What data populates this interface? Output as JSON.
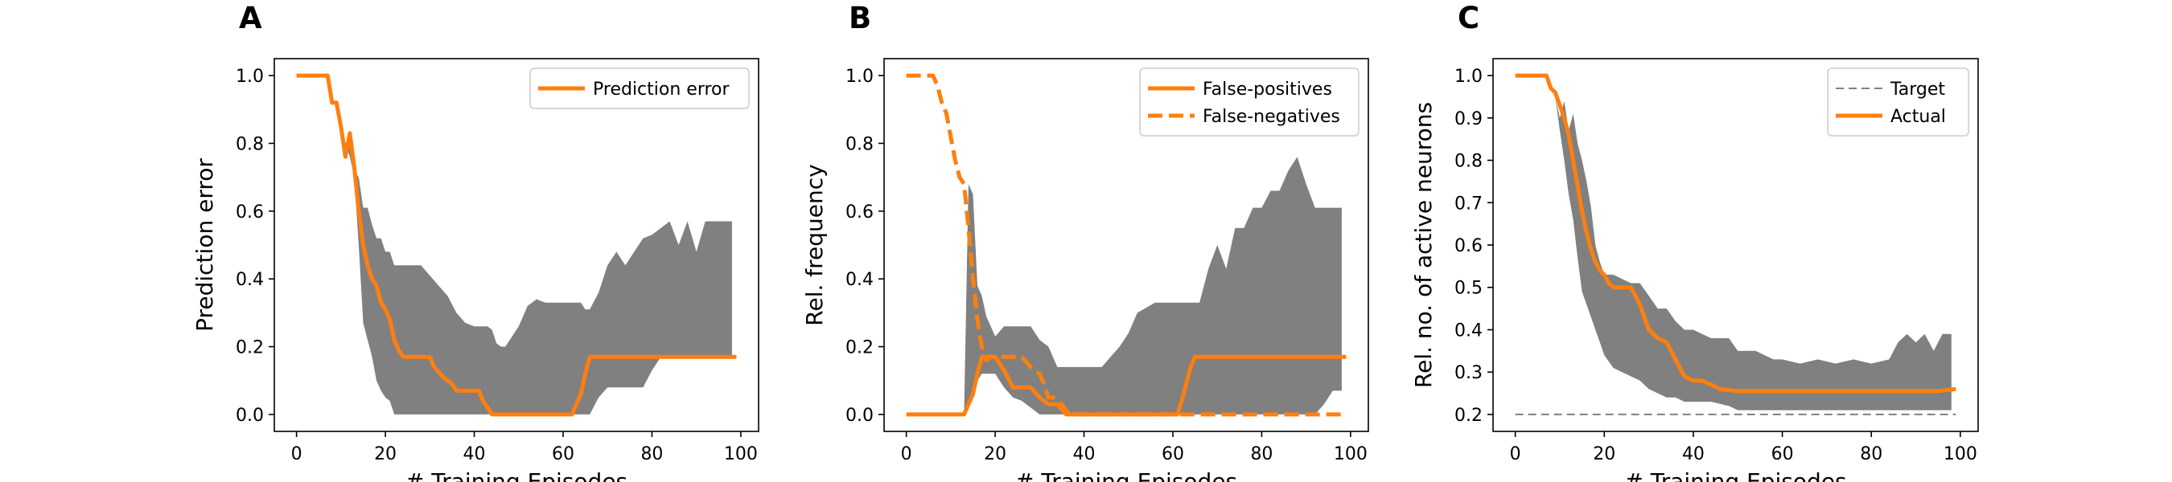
{
  "chart_data": [
    {
      "panel_label": "A",
      "type": "line",
      "xlabel": "# Training Episodes",
      "ylabel": "Prediction error",
      "xlim": [
        -5,
        104
      ],
      "ylim": [
        -0.05,
        1.05
      ],
      "xticks": [
        0,
        20,
        40,
        60,
        80,
        100
      ],
      "yticks": [
        0.0,
        0.2,
        0.4,
        0.6,
        0.8,
        1.0
      ],
      "ytick_labels": [
        "0.0",
        "0.2",
        "0.4",
        "0.6",
        "0.8",
        "1.0"
      ],
      "grid": false,
      "legend_position": "top-right",
      "band": {
        "x": [
          0,
          7,
          8,
          9,
          10,
          11,
          12,
          13,
          14,
          15,
          16,
          17,
          18,
          19,
          20,
          21,
          22,
          23,
          24,
          26,
          28,
          30,
          32,
          34,
          36,
          38,
          40,
          42,
          43,
          44,
          45,
          46,
          47,
          48,
          50,
          52,
          54,
          56,
          58,
          60,
          62,
          64,
          65,
          66,
          68,
          70,
          72,
          74,
          76,
          78,
          80,
          82,
          84,
          86,
          88,
          90,
          92,
          94,
          96,
          98
        ],
        "upper": [
          1.0,
          1.0,
          0.92,
          0.92,
          0.87,
          0.8,
          0.83,
          0.72,
          0.7,
          0.61,
          0.61,
          0.56,
          0.52,
          0.52,
          0.48,
          0.48,
          0.44,
          0.44,
          0.44,
          0.44,
          0.44,
          0.41,
          0.38,
          0.35,
          0.3,
          0.27,
          0.26,
          0.26,
          0.26,
          0.25,
          0.21,
          0.2,
          0.2,
          0.22,
          0.26,
          0.32,
          0.34,
          0.33,
          0.33,
          0.33,
          0.33,
          0.33,
          0.31,
          0.31,
          0.36,
          0.44,
          0.48,
          0.44,
          0.48,
          0.52,
          0.53,
          0.55,
          0.57,
          0.5,
          0.57,
          0.48,
          0.57,
          0.57,
          0.57,
          0.57
        ],
        "lower": [
          1.0,
          1.0,
          0.92,
          0.92,
          0.87,
          0.8,
          0.76,
          0.7,
          0.5,
          0.27,
          0.22,
          0.17,
          0.1,
          0.07,
          0.05,
          0.04,
          0.0,
          0.0,
          0.0,
          0.0,
          0.0,
          0.0,
          0.0,
          0.0,
          0.0,
          0.0,
          0.0,
          0.0,
          0.0,
          0.0,
          0.0,
          0.0,
          0.0,
          0.0,
          0.0,
          0.0,
          0.0,
          0.0,
          0.0,
          0.0,
          0.0,
          0.0,
          0.0,
          0.0,
          0.05,
          0.08,
          0.08,
          0.08,
          0.08,
          0.08,
          0.13,
          0.17,
          0.17,
          0.17,
          0.17,
          0.17,
          0.17,
          0.17,
          0.17,
          0.17
        ]
      },
      "series": [
        {
          "name": "Prediction error",
          "style": "solid",
          "color": "#ff7f0e",
          "x": [
            0,
            7,
            8,
            9,
            10,
            11,
            12,
            13,
            14,
            15,
            16,
            17,
            18,
            19,
            20,
            21,
            22,
            23,
            24,
            25,
            26,
            28,
            30,
            31,
            33,
            35,
            36,
            38,
            41,
            42,
            43,
            44,
            45,
            50,
            55,
            60,
            62,
            64,
            65,
            66,
            70,
            80,
            90,
            99
          ],
          "y": [
            1.0,
            1.0,
            0.92,
            0.92,
            0.85,
            0.76,
            0.83,
            0.73,
            0.6,
            0.5,
            0.44,
            0.4,
            0.38,
            0.33,
            0.31,
            0.28,
            0.22,
            0.19,
            0.17,
            0.17,
            0.17,
            0.17,
            0.17,
            0.14,
            0.11,
            0.09,
            0.07,
            0.07,
            0.07,
            0.04,
            0.02,
            0.0,
            0.0,
            0.0,
            0.0,
            0.0,
            0.0,
            0.06,
            0.12,
            0.17,
            0.17,
            0.17,
            0.17,
            0.17
          ]
        }
      ]
    },
    {
      "panel_label": "B",
      "type": "line",
      "xlabel": "# Training Episodes",
      "ylabel": "Rel. frequency",
      "xlim": [
        -5,
        104
      ],
      "ylim": [
        -0.05,
        1.05
      ],
      "xticks": [
        0,
        20,
        40,
        60,
        80,
        100
      ],
      "yticks": [
        0.0,
        0.2,
        0.4,
        0.6,
        0.8,
        1.0
      ],
      "ytick_labels": [
        "0.0",
        "0.2",
        "0.4",
        "0.6",
        "0.8",
        "1.0"
      ],
      "grid": false,
      "legend_position": "top-right",
      "band": {
        "x": [
          0,
          13,
          14,
          15,
          16,
          17,
          18,
          19,
          20,
          22,
          24,
          26,
          28,
          30,
          32,
          34,
          36,
          38,
          40,
          44,
          48,
          50,
          52,
          56,
          60,
          62,
          63,
          64,
          66,
          68,
          70,
          72,
          74,
          76,
          78,
          80,
          82,
          84,
          86,
          88,
          90,
          92,
          94,
          96,
          98
        ],
        "upper": [
          0.0,
          0.0,
          0.68,
          0.65,
          0.38,
          0.35,
          0.29,
          0.26,
          0.23,
          0.26,
          0.26,
          0.26,
          0.26,
          0.22,
          0.2,
          0.14,
          0.14,
          0.14,
          0.14,
          0.14,
          0.2,
          0.24,
          0.3,
          0.33,
          0.33,
          0.33,
          0.33,
          0.33,
          0.33,
          0.43,
          0.5,
          0.43,
          0.55,
          0.55,
          0.61,
          0.61,
          0.66,
          0.66,
          0.72,
          0.76,
          0.68,
          0.61,
          0.61,
          0.61,
          0.61
        ],
        "lower": [
          0.0,
          0.0,
          0.02,
          0.05,
          0.1,
          0.12,
          0.12,
          0.12,
          0.12,
          0.08,
          0.05,
          0.04,
          0.02,
          0.0,
          0.0,
          0.0,
          0.0,
          0.0,
          0.0,
          0.0,
          0.0,
          0.0,
          0.0,
          0.0,
          0.0,
          0.0,
          0.0,
          0.0,
          0.0,
          0.0,
          0.0,
          0.0,
          0.0,
          0.0,
          0.0,
          0.0,
          0.0,
          0.0,
          0.0,
          0.0,
          0.0,
          0.0,
          0.03,
          0.07,
          0.07
        ]
      },
      "series": [
        {
          "name": "False-positives",
          "style": "solid",
          "color": "#ff7f0e",
          "x": [
            0,
            13,
            14,
            15,
            16,
            17,
            18,
            20,
            22,
            24,
            26,
            28,
            30,
            32,
            34,
            36,
            38,
            40,
            45,
            50,
            55,
            60,
            61,
            62,
            63,
            64,
            65,
            70,
            80,
            90,
            99
          ],
          "y": [
            0.0,
            0.0,
            0.03,
            0.06,
            0.12,
            0.17,
            0.17,
            0.17,
            0.13,
            0.08,
            0.08,
            0.08,
            0.05,
            0.03,
            0.03,
            0.0,
            0.0,
            0.0,
            0.0,
            0.0,
            0.0,
            0.0,
            0.0,
            0.04,
            0.09,
            0.14,
            0.17,
            0.17,
            0.17,
            0.17,
            0.17
          ]
        },
        {
          "name": "False-negatives",
          "style": "dashed",
          "color": "#ff7f0e",
          "x": [
            0,
            6,
            7,
            8,
            9,
            10,
            11,
            12,
            13,
            14,
            15,
            16,
            17,
            18,
            19,
            20,
            22,
            24,
            26,
            28,
            30,
            31,
            32,
            33,
            34,
            35,
            36,
            37,
            40,
            50,
            60,
            70,
            80,
            90,
            99
          ],
          "y": [
            1.0,
            1.0,
            0.97,
            0.92,
            0.89,
            0.82,
            0.75,
            0.7,
            0.68,
            0.55,
            0.4,
            0.28,
            0.2,
            0.16,
            0.17,
            0.17,
            0.17,
            0.17,
            0.17,
            0.14,
            0.12,
            0.09,
            0.05,
            0.05,
            0.04,
            0.03,
            0.01,
            0.0,
            0.0,
            0.0,
            0.0,
            0.0,
            0.0,
            0.0,
            0.0
          ]
        }
      ]
    },
    {
      "panel_label": "C",
      "type": "line",
      "xlabel": "# Training Episodes",
      "ylabel": "Rel. no. of active neurons",
      "xlim": [
        -5,
        104
      ],
      "ylim": [
        0.16,
        1.04
      ],
      "xticks": [
        0,
        20,
        40,
        60,
        80,
        100
      ],
      "yticks": [
        0.2,
        0.3,
        0.4,
        0.5,
        0.6,
        0.7,
        0.8,
        0.9,
        1.0
      ],
      "ytick_labels": [
        "0.2",
        "0.3",
        "0.4",
        "0.5",
        "0.6",
        "0.7",
        "0.8",
        "0.9",
        "1.0"
      ],
      "grid": false,
      "legend_position": "top-right",
      "band": {
        "x": [
          0,
          7,
          8,
          9,
          10,
          11,
          12,
          13,
          14,
          15,
          16,
          17,
          18,
          19,
          20,
          22,
          24,
          26,
          28,
          30,
          32,
          34,
          36,
          38,
          40,
          44,
          48,
          50,
          54,
          58,
          60,
          64,
          68,
          72,
          76,
          80,
          84,
          86,
          88,
          90,
          92,
          94,
          96,
          98
        ],
        "upper": [
          1.0,
          1.0,
          0.97,
          0.95,
          0.9,
          0.94,
          0.87,
          0.91,
          0.84,
          0.8,
          0.75,
          0.69,
          0.6,
          0.56,
          0.53,
          0.53,
          0.52,
          0.51,
          0.51,
          0.48,
          0.45,
          0.45,
          0.42,
          0.4,
          0.4,
          0.38,
          0.38,
          0.35,
          0.35,
          0.33,
          0.33,
          0.32,
          0.33,
          0.32,
          0.33,
          0.32,
          0.33,
          0.37,
          0.39,
          0.37,
          0.39,
          0.35,
          0.39,
          0.39
        ],
        "lower": [
          1.0,
          1.0,
          0.97,
          0.95,
          0.87,
          0.8,
          0.72,
          0.66,
          0.57,
          0.49,
          0.46,
          0.43,
          0.4,
          0.37,
          0.34,
          0.31,
          0.3,
          0.29,
          0.28,
          0.26,
          0.25,
          0.24,
          0.24,
          0.23,
          0.23,
          0.23,
          0.22,
          0.21,
          0.21,
          0.21,
          0.21,
          0.21,
          0.21,
          0.21,
          0.21,
          0.21,
          0.21,
          0.21,
          0.21,
          0.21,
          0.21,
          0.21,
          0.21,
          0.21
        ]
      },
      "series": [
        {
          "name": "Target",
          "style": "dashed",
          "color": "#808080",
          "x": [
            0,
            99
          ],
          "y": [
            0.2,
            0.2
          ]
        },
        {
          "name": "Actual",
          "style": "solid",
          "color": "#ff7f0e",
          "x": [
            0,
            7,
            8,
            9,
            10,
            11,
            12,
            13,
            14,
            15,
            16,
            17,
            18,
            19,
            20,
            21,
            22,
            24,
            26,
            28,
            30,
            32,
            34,
            36,
            38,
            40,
            42,
            44,
            46,
            50,
            55,
            60,
            70,
            80,
            90,
            95,
            99
          ],
          "y": [
            1.0,
            1.0,
            0.97,
            0.96,
            0.93,
            0.9,
            0.86,
            0.8,
            0.74,
            0.68,
            0.63,
            0.59,
            0.56,
            0.54,
            0.53,
            0.51,
            0.5,
            0.5,
            0.5,
            0.46,
            0.4,
            0.38,
            0.37,
            0.33,
            0.29,
            0.28,
            0.28,
            0.27,
            0.26,
            0.255,
            0.255,
            0.255,
            0.255,
            0.255,
            0.255,
            0.255,
            0.26
          ]
        }
      ]
    }
  ]
}
